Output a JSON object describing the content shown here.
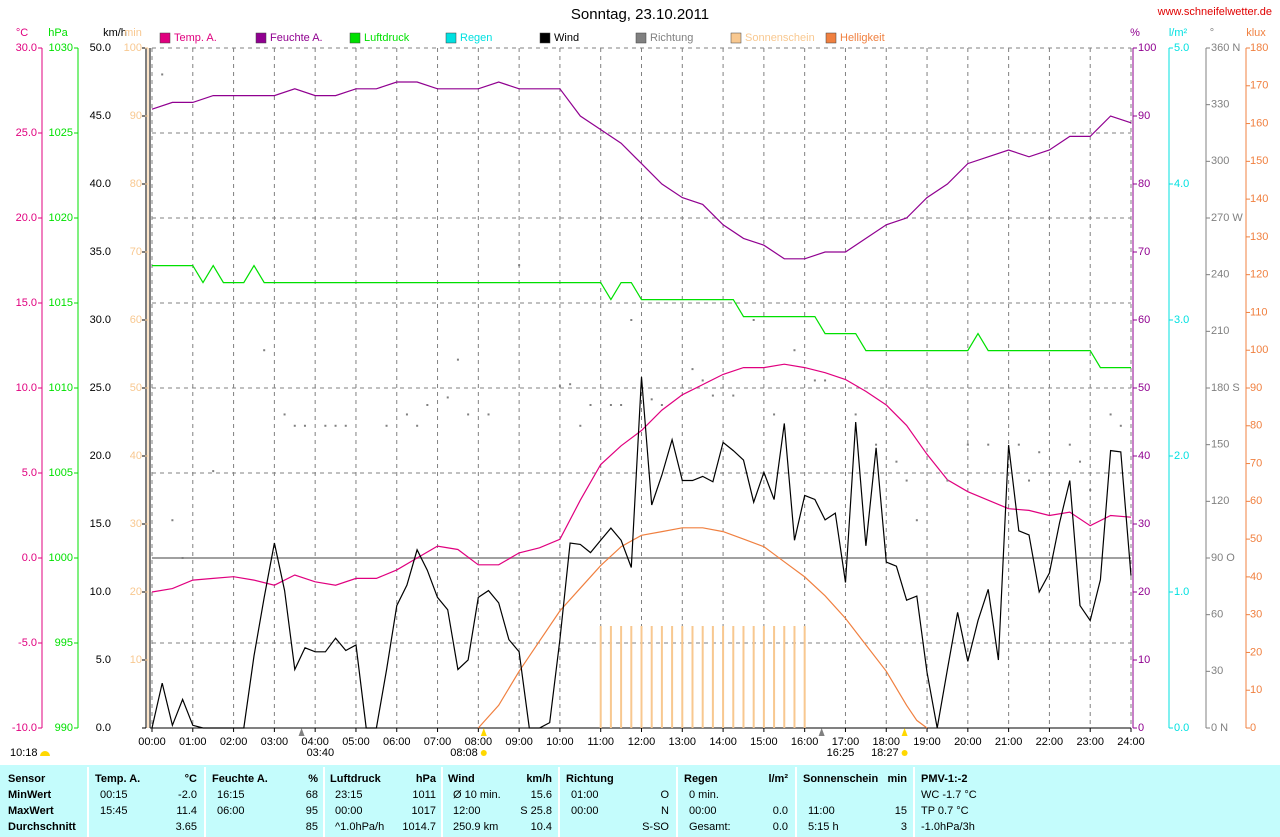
{
  "chart_data": {
    "type": "line",
    "title": "Sonntag, 23.10.2011",
    "site": "www.schneifelwetter.de",
    "grid": true,
    "xlim": [
      0,
      24
    ],
    "xticks": [
      {
        "value": 0,
        "label": "00:00"
      },
      {
        "value": 1,
        "label": "01:00"
      },
      {
        "value": 2,
        "label": "02:00"
      },
      {
        "value": 3,
        "label": "03:00"
      },
      {
        "value": 4,
        "label": "04:00"
      },
      {
        "value": 5,
        "label": "05:00"
      },
      {
        "value": 6,
        "label": "06:00"
      },
      {
        "value": 7,
        "label": "07:00"
      },
      {
        "value": 8,
        "label": "08:00"
      },
      {
        "value": 9,
        "label": "09:00"
      },
      {
        "value": 10,
        "label": "10:00"
      },
      {
        "value": 11,
        "label": "11:00"
      },
      {
        "value": 12,
        "label": "12:00"
      },
      {
        "value": 13,
        "label": "13:00"
      },
      {
        "value": 14,
        "label": "14:00"
      },
      {
        "value": 15,
        "label": "15:00"
      },
      {
        "value": 16,
        "label": "16:00"
      },
      {
        "value": 17,
        "label": "17:00"
      },
      {
        "value": 18,
        "label": "18:00"
      },
      {
        "value": 19,
        "label": "19:00"
      },
      {
        "value": 20,
        "label": "20:00"
      },
      {
        "value": 21,
        "label": "21:00"
      },
      {
        "value": 22,
        "label": "22:00"
      },
      {
        "value": 23,
        "label": "23:00"
      },
      {
        "value": 24,
        "label": "24:00"
      }
    ],
    "annotations": [
      "03:40",
      "08:08",
      "16:25",
      "18:27"
    ],
    "corner_time": "10:18",
    "series": [
      {
        "name": "Temp. A.",
        "color": "#e0007f",
        "type": "line",
        "axis": {
          "unit": "°C",
          "lim": [
            -10,
            30
          ],
          "ticks": [
            {
              "value": -10,
              "label": "-10.0"
            },
            {
              "value": -5,
              "label": "-5.0"
            },
            {
              "value": 0,
              "label": "0.0"
            },
            {
              "value": 5,
              "label": "5.0"
            },
            {
              "value": 10,
              "label": "10.0"
            },
            {
              "value": 15,
              "label": "15.0"
            },
            {
              "value": 20,
              "label": "20.0"
            },
            {
              "value": 25,
              "label": "25.0"
            },
            {
              "value": 30,
              "label": "30.0"
            }
          ]
        },
        "x": [
          0,
          0.5,
          1,
          1.5,
          2,
          2.5,
          3,
          3.5,
          4,
          4.5,
          5,
          5.5,
          6,
          6.5,
          7,
          7.5,
          8,
          8.5,
          9,
          9.5,
          10,
          10.5,
          11,
          11.5,
          12,
          12.5,
          13,
          13.5,
          14,
          14.5,
          15,
          15.5,
          16,
          16.5,
          17,
          17.5,
          18,
          18.5,
          19,
          19.5,
          20,
          20.5,
          21,
          21.5,
          22,
          22.5,
          23,
          23.5,
          24
        ],
        "values": [
          -2.0,
          -1.8,
          -1.3,
          -1.2,
          -1.1,
          -1.3,
          -1.6,
          -1.0,
          -1.4,
          -1.6,
          -1.2,
          -1.2,
          -0.7,
          0.0,
          0.7,
          0.5,
          -0.4,
          -0.4,
          0.3,
          0.6,
          1.1,
          3.4,
          5.5,
          6.6,
          7.5,
          8.7,
          9.6,
          10.2,
          10.8,
          11.2,
          11.2,
          11.4,
          11.2,
          10.9,
          10.5,
          9.8,
          9.0,
          7.8,
          6.1,
          4.6,
          3.9,
          3.4,
          2.9,
          2.8,
          2.5,
          2.7,
          1.9,
          2.5,
          2.4
        ]
      },
      {
        "name": "Feuchte A.",
        "color": "#900090",
        "type": "line",
        "axis": {
          "unit": "%",
          "lim": [
            0,
            100
          ],
          "ticks": [
            0,
            10,
            20,
            30,
            40,
            50,
            60,
            70,
            80,
            90,
            100
          ]
        },
        "x": [
          0,
          0.5,
          1,
          1.5,
          2,
          2.5,
          3,
          3.5,
          4,
          4.5,
          5,
          5.5,
          6,
          6.5,
          7,
          7.5,
          8,
          8.5,
          9,
          9.5,
          10,
          10.5,
          11,
          11.5,
          12,
          12.5,
          13,
          13.5,
          14,
          14.5,
          15,
          15.5,
          16,
          16.5,
          17,
          17.5,
          18,
          18.5,
          19,
          19.5,
          20,
          20.5,
          21,
          21.5,
          22,
          22.5,
          23,
          23.5,
          24
        ],
        "values": [
          91,
          92,
          92,
          93,
          93,
          93,
          93,
          94,
          93,
          93,
          94,
          94,
          95,
          95,
          94,
          94,
          94,
          95,
          94,
          94,
          94,
          90,
          88,
          86,
          83,
          80,
          78,
          77,
          74,
          72,
          71,
          69,
          69,
          70,
          70,
          72,
          74,
          75,
          78,
          80,
          83,
          84,
          85,
          84,
          85,
          87,
          87,
          90,
          89
        ]
      },
      {
        "name": "Luftdruck",
        "color": "#00e000",
        "type": "line",
        "axis": {
          "unit": "hPa",
          "lim": [
            990,
            1030
          ],
          "ticks": [
            990,
            995,
            1000,
            1005,
            1010,
            1015,
            1020,
            1025,
            1030
          ]
        },
        "x": [
          0,
          1,
          1.25,
          1.5,
          1.75,
          2.25,
          2.5,
          2.75,
          11,
          11.25,
          11.5,
          11.75,
          12,
          14.25,
          14.5,
          16.25,
          16.5,
          17.25,
          17.5,
          20,
          20.25,
          20.5,
          23,
          23.25,
          24
        ],
        "values": [
          1017.2,
          1017.2,
          1016.2,
          1017.2,
          1016.2,
          1016.2,
          1017.2,
          1016.2,
          1016.2,
          1015.2,
          1016.2,
          1016.2,
          1015.2,
          1015.2,
          1014.2,
          1014.2,
          1013.2,
          1013.2,
          1012.2,
          1012.2,
          1013.2,
          1012.2,
          1012.2,
          1011.2,
          1011.2
        ]
      },
      {
        "name": "Regen",
        "color": "#00e0e0",
        "type": "bar",
        "axis": {
          "unit": "l/m²",
          "lim": [
            0,
            5
          ],
          "ticks": [
            {
              "value": 0,
              "label": "0.0"
            },
            {
              "value": 1,
              "label": "1.0"
            },
            {
              "value": 2,
              "label": "2.0"
            },
            {
              "value": 3,
              "label": "3.0"
            },
            {
              "value": 4,
              "label": "4.0"
            },
            {
              "value": 5,
              "label": "5.0"
            }
          ]
        }
      },
      {
        "name": "Wind",
        "color": "#000000",
        "type": "line",
        "axis": {
          "unit": "km/h",
          "lim": [
            0,
            50
          ],
          "ticks": [
            {
              "value": 0,
              "label": "0.0"
            },
            {
              "value": 5,
              "label": "5.0"
            },
            {
              "value": 10,
              "label": "10.0"
            },
            {
              "value": 15,
              "label": "15.0"
            },
            {
              "value": 20,
              "label": "20.0"
            },
            {
              "value": 25,
              "label": "25.0"
            },
            {
              "value": 30,
              "label": "30.0"
            },
            {
              "value": 35,
              "label": "35.0"
            },
            {
              "value": 40,
              "label": "40.0"
            },
            {
              "value": 45,
              "label": "45.0"
            },
            {
              "value": 50,
              "label": "50.0"
            }
          ]
        },
        "x": [
          0,
          0.25,
          0.5,
          0.75,
          1,
          1.25,
          1.5,
          1.75,
          2,
          2.25,
          2.5,
          2.75,
          3,
          3.25,
          3.5,
          3.75,
          4,
          4.25,
          4.5,
          4.75,
          5,
          5.25,
          5.5,
          5.75,
          6,
          6.25,
          6.5,
          6.75,
          7,
          7.25,
          7.5,
          7.75,
          8,
          8.25,
          8.5,
          8.75,
          9,
          9.25,
          9.5,
          9.75,
          10,
          10.25,
          10.5,
          10.75,
          11,
          11.25,
          11.5,
          11.75,
          12,
          12.25,
          12.5,
          12.75,
          13,
          13.25,
          13.5,
          13.75,
          14,
          14.25,
          14.5,
          14.75,
          15,
          15.25,
          15.5,
          15.75,
          16,
          16.25,
          16.5,
          16.75,
          17,
          17.25,
          17.5,
          17.75,
          18,
          18.25,
          18.5,
          18.75,
          19,
          19.25,
          19.5,
          19.75,
          20,
          20.25,
          20.5,
          20.75,
          21,
          21.25,
          21.5,
          21.75,
          22,
          22.25,
          22.5,
          22.75,
          23,
          23.25,
          23.5,
          23.75,
          24
        ],
        "values": [
          0,
          3.3,
          0.2,
          2.1,
          0.2,
          0,
          0,
          0,
          0,
          0,
          5.3,
          9.6,
          13.6,
          10.1,
          4.3,
          5.9,
          5.6,
          5.6,
          6.6,
          5.7,
          6.1,
          0,
          0,
          4.3,
          9.0,
          10.5,
          13.1,
          11.6,
          9.6,
          8.7,
          4.3,
          5.0,
          9.6,
          10.1,
          9.2,
          6.5,
          5.6,
          0,
          0,
          0.4,
          6.5,
          13.6,
          13.5,
          12.9,
          13.8,
          14.7,
          13.8,
          11.8,
          25.8,
          16.4,
          18.6,
          21.2,
          18.2,
          18.2,
          18.5,
          18.1,
          21.0,
          20.4,
          19.7,
          16.6,
          18.8,
          16.8,
          22.4,
          13.8,
          17.1,
          16.8,
          15.3,
          15.8,
          10.7,
          22.5,
          13.4,
          20.6,
          12.2,
          11.9,
          9.4,
          9.7,
          4.1,
          0,
          4.3,
          8.5,
          4.9,
          7.9,
          10.2,
          5.0,
          20.8,
          14.5,
          14.2,
          10.0,
          11.4,
          15.1,
          18.2,
          9.0,
          7.9,
          10.9,
          20.4,
          20.3,
          11.2
        ]
      },
      {
        "name": "Richtung",
        "color": "#808080",
        "type": "scatter",
        "axis": {
          "unit": "°",
          "lim": [
            0,
            360
          ],
          "ticks": [
            {
              "value": 0,
              "label": "0 N"
            },
            30,
            60,
            {
              "value": 90,
              "label": "90 O"
            },
            120,
            150,
            {
              "value": 180,
              "label": "180 S"
            },
            210,
            240,
            {
              "value": 270,
              "label": "270 W"
            },
            300,
            330,
            {
              "value": 360,
              "label": "360 N"
            }
          ]
        },
        "x": [
          0.25,
          0.5,
          0.75,
          1.5,
          2.75,
          3.25,
          3.5,
          3.75,
          4.25,
          4.5,
          4.75,
          5.75,
          6.25,
          6.5,
          6.75,
          7.25,
          7.5,
          7.75,
          8.25,
          9,
          10,
          10.25,
          10.5,
          10.75,
          11.25,
          11.5,
          11.75,
          12.25,
          12.5,
          13.25,
          13.5,
          13.75,
          14.25,
          14.75,
          15.25,
          15.75,
          16.25,
          16.5,
          17.25,
          17.75,
          18.25,
          18.5,
          18.75,
          19.5,
          20,
          20.5,
          21.25,
          21.5,
          21.75,
          22.5,
          22.75,
          23,
          23.5,
          23.75
        ],
        "values": [
          346,
          110,
          90,
          136,
          200,
          166,
          160,
          160,
          160,
          160,
          160,
          160,
          166,
          160,
          171,
          175,
          195,
          166,
          166,
          245,
          181,
          182,
          160,
          171,
          171,
          171,
          216,
          174,
          171,
          190,
          184,
          176,
          176,
          216,
          166,
          200,
          184,
          184,
          166,
          150,
          141,
          131,
          110,
          131,
          150,
          150,
          150,
          131,
          146,
          150,
          141,
          126,
          166,
          160
        ]
      },
      {
        "name": "Sonnenschein",
        "color": "#f8c890",
        "type": "bar",
        "axis": {
          "unit": "min",
          "lim": [
            0,
            100
          ],
          "ticks": [
            10,
            20,
            30,
            40,
            50,
            60,
            70,
            80,
            90,
            100
          ]
        },
        "x": [
          11,
          11.25,
          11.5,
          11.75,
          12,
          12.25,
          12.5,
          12.75,
          13,
          13.25,
          13.5,
          13.75,
          14,
          14.25,
          14.5,
          14.75,
          15,
          15.25,
          15.5,
          15.75,
          16
        ],
        "values": [
          15,
          15,
          15,
          15,
          15,
          15,
          15,
          15,
          15,
          15,
          15,
          15,
          15,
          15,
          15,
          15,
          15,
          15,
          15,
          15,
          15
        ]
      },
      {
        "name": "Helligkeit",
        "color": "#f08040",
        "type": "line",
        "axis": {
          "unit": "klux",
          "lim": [
            0,
            180
          ],
          "ticks": [
            0,
            10,
            20,
            30,
            40,
            50,
            60,
            70,
            80,
            90,
            100,
            110,
            120,
            130,
            140,
            150,
            160,
            170,
            180
          ]
        },
        "x": [
          8,
          8.5,
          9,
          9.5,
          10,
          10.5,
          11,
          11.5,
          12,
          12.5,
          13,
          13.5,
          14,
          14.5,
          15,
          15.5,
          16,
          16.5,
          17,
          17.5,
          18,
          18.5,
          18.75,
          19
        ],
        "values": [
          0,
          6,
          15,
          23,
          31,
          37,
          43,
          48,
          51,
          52,
          53,
          53,
          52,
          50,
          48,
          44,
          40,
          35,
          29,
          22,
          15,
          6,
          2,
          0
        ]
      }
    ]
  },
  "table": {
    "columns": [
      {
        "title": "Sensor"
      },
      {
        "title": "Temp. A.",
        "unit": "°C"
      },
      {
        "title": "Feuchte A.",
        "unit": "%"
      },
      {
        "title": "Luftdruck",
        "unit": "hPa"
      },
      {
        "title": "Wind",
        "unit": "km/h"
      },
      {
        "title": "Richtung"
      },
      {
        "title": "Regen",
        "unit": "l/m²"
      },
      {
        "title": "Sonnenschein",
        "unit": "min"
      },
      {
        "title": "PMV-1:-2"
      }
    ],
    "rows": [
      {
        "label": "MinWert",
        "cells": [
          [
            "00:15",
            "-2.0"
          ],
          [
            "16:15",
            "68"
          ],
          [
            "23:15",
            "1011"
          ],
          [
            "Ø 10 min.",
            "15.6"
          ],
          [
            "01:00",
            "O"
          ],
          [
            "0 min.",
            null
          ],
          [
            null,
            null
          ],
          [
            "WC -1.7 °C"
          ]
        ]
      },
      {
        "label": "MaxWert",
        "cells": [
          [
            "15:45",
            "11.4"
          ],
          [
            "06:00",
            "95"
          ],
          [
            "00:00",
            "1017"
          ],
          [
            "12:00",
            "S 25.8"
          ],
          [
            "00:00",
            "N"
          ],
          [
            "00:00",
            "0.0"
          ],
          [
            "11:00",
            "15"
          ],
          [
            "TP 0.7 °C"
          ]
        ]
      },
      {
        "label": "Durchschnitt",
        "cells": [
          [
            null,
            "3.65"
          ],
          [
            null,
            "85"
          ],
          [
            "^1.0hPa/h",
            "1014.7"
          ],
          [
            "250.9 km",
            "10.4"
          ],
          [
            null,
            "S-SO"
          ],
          [
            "Gesamt:",
            "0.0"
          ],
          [
            "5:15 h",
            "3"
          ],
          [
            "-1.0hPa/3h"
          ]
        ]
      }
    ]
  }
}
